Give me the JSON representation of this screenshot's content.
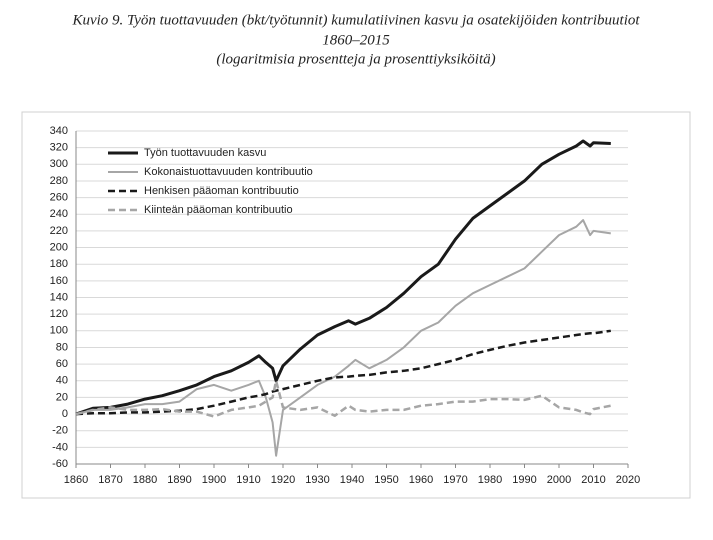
{
  "chart_data": {
    "type": "line",
    "title": "Kuvio 9. Työn tuottavuuden (bkt/työtunnit) kumulatiivinen kasvu ja osatekijöiden kontribuutiot",
    "subtitle": "1860–2015",
    "note": "(logaritmisia prosentteja ja prosenttiyksiköitä)",
    "x": [
      1860,
      1865,
      1870,
      1875,
      1880,
      1885,
      1890,
      1895,
      1900,
      1905,
      1910,
      1913,
      1915,
      1917,
      1918,
      1920,
      1925,
      1930,
      1935,
      1939,
      1941,
      1945,
      1950,
      1955,
      1960,
      1965,
      1970,
      1975,
      1980,
      1985,
      1990,
      1995,
      2000,
      2005,
      2007,
      2009,
      2010,
      2015
    ],
    "series": [
      {
        "name": "Työn tuottavuuden kasvu",
        "color": "#1a1a1a",
        "dashed": false,
        "values": [
          0,
          7,
          8,
          12,
          18,
          22,
          28,
          35,
          45,
          52,
          62,
          70,
          62,
          55,
          40,
          58,
          78,
          95,
          105,
          112,
          108,
          115,
          128,
          145,
          165,
          180,
          210,
          235,
          250,
          265,
          280,
          300,
          312,
          322,
          328,
          322,
          326,
          325
        ]
      },
      {
        "name": "Kokonaistuottavuuden kontribuutio",
        "color": "#a6a6a6",
        "dashed": false,
        "values": [
          0,
          5,
          5,
          8,
          12,
          12,
          15,
          30,
          35,
          28,
          35,
          40,
          20,
          -10,
          -50,
          5,
          20,
          35,
          45,
          58,
          65,
          55,
          65,
          80,
          100,
          110,
          130,
          145,
          155,
          165,
          175,
          195,
          215,
          225,
          233,
          215,
          220,
          217
        ]
      },
      {
        "name": "Henkisen pääoman kontribuutio",
        "color": "#1a1a1a",
        "dashed": true,
        "values": [
          0,
          1,
          1,
          2,
          2,
          3,
          4,
          6,
          10,
          15,
          20,
          22,
          24,
          27,
          28,
          30,
          35,
          40,
          44,
          45,
          46,
          47,
          50,
          52,
          55,
          60,
          65,
          72,
          77,
          82,
          86,
          89,
          92,
          95,
          96,
          97,
          97,
          100
        ]
      },
      {
        "name": "Kiinteän pääoman kontribuutio",
        "color": "#a6a6a6",
        "dashed": true,
        "values": [
          0,
          5,
          8,
          5,
          5,
          6,
          3,
          3,
          -3,
          5,
          8,
          10,
          15,
          20,
          40,
          8,
          5,
          8,
          -2,
          10,
          5,
          3,
          5,
          5,
          10,
          12,
          15,
          15,
          18,
          18,
          17,
          22,
          8,
          5,
          2,
          0,
          6,
          10
        ]
      }
    ],
    "xlim": [
      1860,
      2020
    ],
    "xticks": [
      1860,
      1870,
      1880,
      1890,
      1900,
      1910,
      1920,
      1930,
      1940,
      1950,
      1960,
      1970,
      1980,
      1990,
      2000,
      2010,
      2020
    ],
    "ylim": [
      -60,
      340
    ],
    "yticks": [
      -60,
      -40,
      -20,
      0,
      20,
      40,
      60,
      80,
      100,
      120,
      140,
      160,
      180,
      200,
      220,
      240,
      260,
      280,
      300,
      320,
      340
    ],
    "grid": true,
    "legend": "top-left"
  }
}
